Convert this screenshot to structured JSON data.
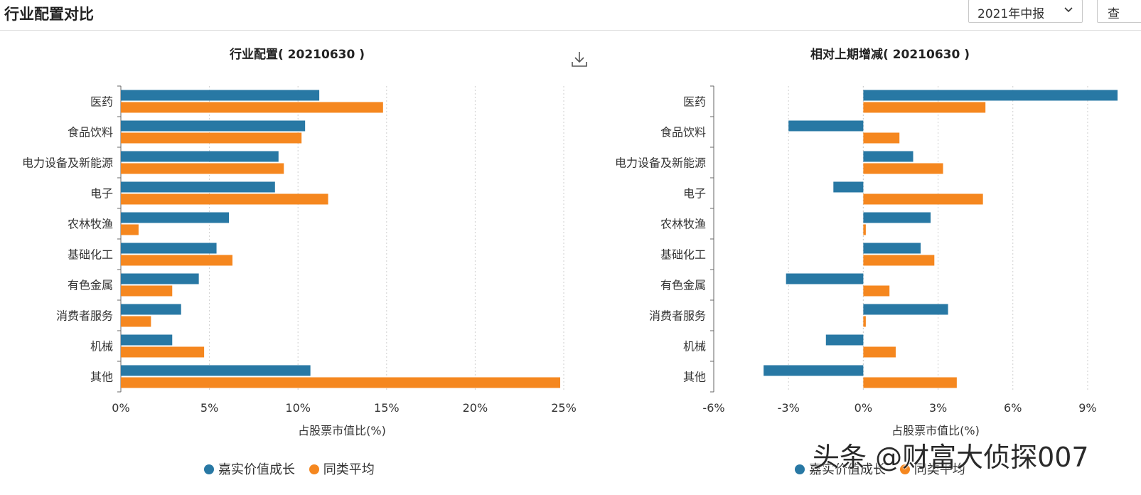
{
  "header": {
    "title": "行业配置对比",
    "period_value": "2021年中报",
    "query_label": "查"
  },
  "colors": {
    "series1": "#2878a4",
    "series2": "#f5871f"
  },
  "watermark": "头条 @财富大侦探007",
  "chart_data": [
    {
      "type": "bar",
      "orientation": "horizontal",
      "title": "行业配置( 20210630 )",
      "xlabel": "占股票市值比(%)",
      "ylabel": "",
      "categories": [
        "医药",
        "食品饮料",
        "电力设备及新能源",
        "电子",
        "农林牧渔",
        "基础化工",
        "有色金属",
        "消费者服务",
        "机械",
        "其他"
      ],
      "series": [
        {
          "name": "嘉实价值成长",
          "values": [
            11.2,
            10.4,
            8.9,
            8.7,
            6.1,
            5.4,
            4.4,
            3.4,
            2.9,
            10.7
          ]
        },
        {
          "name": "同类平均",
          "values": [
            14.8,
            10.2,
            9.2,
            11.7,
            1.0,
            6.3,
            2.9,
            1.7,
            4.7,
            24.8
          ]
        }
      ],
      "xlim": [
        0,
        25
      ],
      "xticks": [
        0,
        5,
        10,
        15,
        20,
        25
      ],
      "xtick_labels": [
        "0%",
        "5%",
        "10%",
        "15%",
        "20%",
        "25%"
      ],
      "grid": "vertical-dotted",
      "legend": "bottom-center"
    },
    {
      "type": "bar",
      "orientation": "horizontal",
      "title": "相对上期增减( 20210630 )",
      "xlabel": "占股票市值比(%)",
      "ylabel": "",
      "categories": [
        "医药",
        "食品饮料",
        "电力设备及新能源",
        "电子",
        "农林牧渔",
        "基础化工",
        "有色金属",
        "消费者服务",
        "机械",
        "其他"
      ],
      "series": [
        {
          "name": "嘉实价值成长",
          "values": [
            10.2,
            -3.0,
            2.0,
            -1.2,
            2.7,
            2.3,
            -3.1,
            3.4,
            -1.5,
            -4.0
          ]
        },
        {
          "name": "同类平均",
          "values": [
            4.9,
            1.45,
            3.2,
            4.8,
            0.1,
            2.85,
            1.05,
            0.1,
            1.3,
            3.75
          ]
        }
      ],
      "xlim": [
        -6,
        10
      ],
      "xticks": [
        -6,
        -3,
        0,
        3,
        6,
        9
      ],
      "xtick_labels": [
        "-6%",
        "-3%",
        "0%",
        "3%",
        "6%",
        "9%"
      ],
      "grid": "vertical-dotted",
      "legend": "bottom-center"
    }
  ]
}
